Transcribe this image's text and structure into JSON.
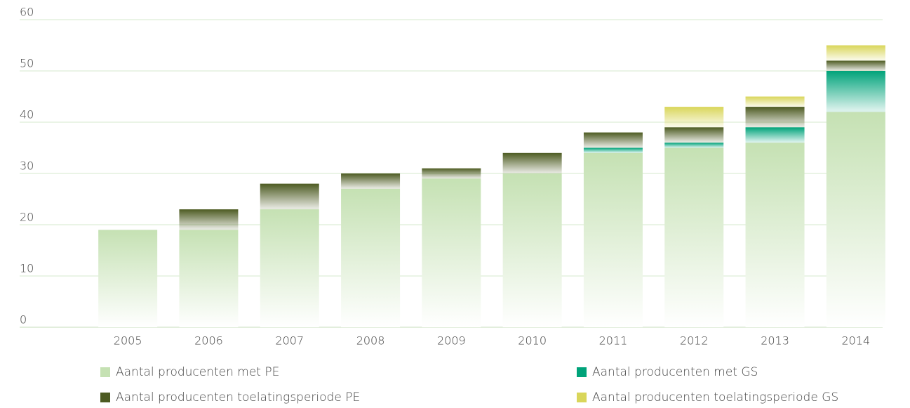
{
  "chart_data": {
    "type": "stacked_bar",
    "categories": [
      "2005",
      "2006",
      "2007",
      "2008",
      "2009",
      "2010",
      "2011",
      "2012",
      "2013",
      "2014"
    ],
    "series": [
      {
        "name": "Aantal producenten met PE",
        "color": "#c5e1b3",
        "values": [
          19,
          19,
          23,
          27,
          29,
          30,
          34,
          35,
          36,
          42
        ]
      },
      {
        "name": "Aantal producenten met GS",
        "color": "#00a37a",
        "values": [
          0,
          0,
          0,
          0,
          0,
          0,
          1,
          1,
          3,
          8
        ]
      },
      {
        "name": "Aantal producenten toelatingsperiode PE",
        "color": "#4d5b22",
        "values": [
          0,
          4,
          5,
          3,
          2,
          4,
          3,
          3,
          4,
          2
        ]
      },
      {
        "name": "Aantal producenten toelatingsperiode GS",
        "color": "#d9d65a",
        "values": [
          0,
          0,
          0,
          0,
          0,
          0,
          0,
          4,
          2,
          3
        ]
      }
    ],
    "ylim": [
      0,
      60
    ],
    "yticks": [
      0,
      10,
      20,
      30,
      40,
      50,
      60
    ],
    "grid": true
  }
}
